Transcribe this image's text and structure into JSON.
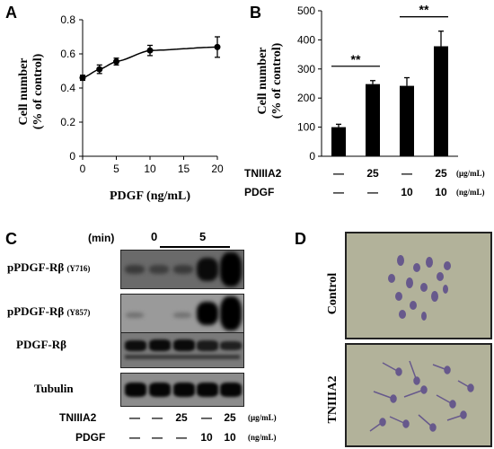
{
  "panels": {
    "A": {
      "letter": "A"
    },
    "B": {
      "letter": "B"
    },
    "C": {
      "letter": "C"
    },
    "D": {
      "letter": "D"
    }
  },
  "chart_data": [
    {
      "type": "line",
      "panel": "A",
      "xlabel": "PDGF (ng/mL)",
      "ylabel_line1": "Cell number",
      "ylabel_line2": "(% of control)",
      "x": [
        0,
        2.5,
        5,
        10,
        20
      ],
      "y": [
        0.46,
        0.51,
        0.555,
        0.62,
        0.64
      ],
      "err": [
        0.015,
        0.025,
        0.02,
        0.03,
        0.06
      ],
      "xlim": [
        0,
        20
      ],
      "ylim": [
        0,
        0.8
      ],
      "xticks": [
        "0",
        "5",
        "10",
        "15",
        "20"
      ],
      "yticks": [
        "0",
        "0.2",
        "0.4",
        "0.6",
        "0.8"
      ]
    },
    {
      "type": "bar",
      "panel": "B",
      "ylabel_line1": "Cell number",
      "ylabel_line2": "(% of control)",
      "values": [
        100,
        248,
        242,
        378
      ],
      "err": [
        10,
        12,
        28,
        52
      ],
      "ylim": [
        0,
        500
      ],
      "yticks": [
        "0",
        "100",
        "200",
        "300",
        "400",
        "500"
      ],
      "significance": [
        {
          "from": 0,
          "to": 1,
          "label": "**"
        },
        {
          "from": 2,
          "to": 3,
          "label": "**"
        }
      ],
      "rows": [
        {
          "label": "TNIIIA2",
          "values": [
            "—",
            "25",
            "—",
            "25"
          ],
          "unit": "(μg/mL)"
        },
        {
          "label": "PDGF",
          "values": [
            "—",
            "—",
            "10",
            "10"
          ],
          "unit": "(ng/mL)"
        }
      ]
    }
  ],
  "panelC": {
    "time_label": "(min)",
    "time_zero": "0",
    "time_five": "5",
    "blots": [
      {
        "name": "pPDGF-Rβ",
        "site": "(Y716)"
      },
      {
        "name": "pPDGF-Rβ",
        "site": "(Y857)"
      },
      {
        "name": "PDGF-Rβ",
        "site": ""
      },
      {
        "name": "Tubulin",
        "site": ""
      }
    ],
    "rows": [
      {
        "label": "TNIIIA2",
        "values": [
          "—",
          "—",
          "25",
          "—",
          "25"
        ],
        "unit": "(μg/mL)"
      },
      {
        "label": "PDGF",
        "values": [
          "—",
          "—",
          "—",
          "10",
          "10"
        ],
        "unit": "(ng/mL)"
      }
    ]
  },
  "panelD": {
    "labels": [
      "Control",
      "TNIIIA2"
    ]
  }
}
